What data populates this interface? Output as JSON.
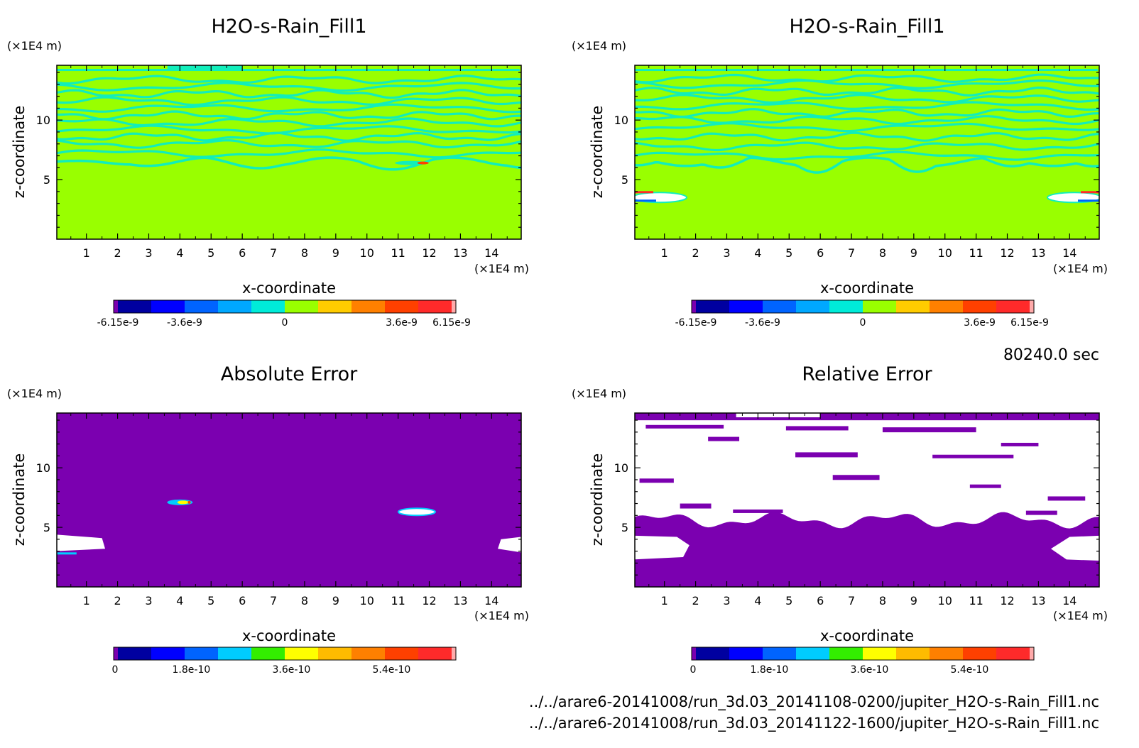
{
  "figure": {
    "time_label": "80240.0 sec",
    "files": [
      "../../arare6-20141008/run_3d.03_20141108-0200/jupiter_H2O-s-Rain_Fill1.nc",
      "../../arare6-20141008/run_3d.03_20141122-1600/jupiter_H2O-s-Rain_Fill1.nc"
    ],
    "colors": {
      "field_bg": "#99ff00",
      "field_contour": "#11eebb",
      "error_bg": "#7b00b0",
      "relative_high": "#ffffff"
    }
  },
  "chart_data": [
    {
      "type": "heatmap",
      "title": "H2O-s-Rain_Fill1",
      "xlabel": "x-coordinate",
      "ylabel": "z-coordinate",
      "x_unit": "(×1E4 m)",
      "y_unit": "(×1E4 m)",
      "xlim": [
        0.05,
        14.95
      ],
      "ylim": [
        0,
        14.6
      ],
      "xticks": [
        1,
        2,
        3,
        4,
        5,
        6,
        7,
        8,
        9,
        10,
        11,
        12,
        13,
        14
      ],
      "yticks": [
        5,
        10
      ],
      "colorbar": {
        "colors": [
          "#7b00b0",
          "#0000a0",
          "#0000ff",
          "#0064ff",
          "#00a8ff",
          "#00ecd8",
          "#99ff00",
          "#ffcc00",
          "#ff8000",
          "#ff4000",
          "#ff2a2a",
          "#ffaaaa"
        ],
        "tick_labels": [
          "-6.15e-9",
          "-3.6e-9",
          "0",
          "3.6e-9",
          "6.15e-9"
        ]
      },
      "features": {
        "contour_bands_z": [
          7.2,
          8.0,
          8.6,
          9.2,
          9.8,
          10.4,
          11.0,
          11.6,
          12.2,
          12.8,
          13.4
        ],
        "boundary_z": 6.5
      }
    },
    {
      "type": "heatmap",
      "title": "H2O-s-Rain_Fill1",
      "xlabel": "x-coordinate",
      "ylabel": "z-coordinate",
      "x_unit": "(×1E4 m)",
      "y_unit": "(×1E4 m)",
      "xlim": [
        0.05,
        14.95
      ],
      "ylim": [
        0,
        14.6
      ],
      "xticks": [
        1,
        2,
        3,
        4,
        5,
        6,
        7,
        8,
        9,
        10,
        11,
        12,
        13,
        14
      ],
      "yticks": [
        5,
        10
      ],
      "colorbar": {
        "colors": [
          "#7b00b0",
          "#0000a0",
          "#0000ff",
          "#0064ff",
          "#00a8ff",
          "#00ecd8",
          "#99ff00",
          "#ffcc00",
          "#ff8000",
          "#ff4000",
          "#ff2a2a",
          "#ffaaaa"
        ],
        "tick_labels": [
          "-6.15e-9",
          "-3.6e-9",
          "0",
          "3.6e-9",
          "6.15e-9"
        ]
      },
      "features": {
        "contour_bands_z": [
          7.0,
          7.8,
          8.6,
          9.4,
          10.0,
          10.6,
          11.2,
          11.8,
          12.4,
          13.0,
          13.5
        ],
        "boundary_z": 6.5
      }
    },
    {
      "type": "heatmap",
      "title": "Absolute Error",
      "xlabel": "x-coordinate",
      "ylabel": "z-coordinate",
      "x_unit": "(×1E4 m)",
      "y_unit": "(×1E4 m)",
      "xlim": [
        0.05,
        14.95
      ],
      "ylim": [
        0,
        14.6
      ],
      "xticks": [
        1,
        2,
        3,
        4,
        5,
        6,
        7,
        8,
        9,
        10,
        11,
        12,
        13,
        14
      ],
      "yticks": [
        5,
        10
      ],
      "colorbar": {
        "colors": [
          "#7b00b0",
          "#0000a0",
          "#0000ff",
          "#0064ff",
          "#00ccff",
          "#33ee00",
          "#ffff00",
          "#ffbb00",
          "#ff8000",
          "#ff4000",
          "#ff2a2a",
          "#ffaaaa"
        ],
        "tick_labels": [
          "0",
          "1.8e-10",
          "3.6e-10",
          "5.4e-10"
        ]
      }
    },
    {
      "type": "heatmap",
      "title": "Relative Error",
      "xlabel": "x-coordinate",
      "ylabel": "z-coordinate",
      "x_unit": "(×1E4 m)",
      "y_unit": "(×1E4 m)",
      "xlim": [
        0.05,
        14.95
      ],
      "ylim": [
        0,
        14.6
      ],
      "xticks": [
        1,
        2,
        3,
        4,
        5,
        6,
        7,
        8,
        9,
        10,
        11,
        12,
        13,
        14
      ],
      "yticks": [
        5,
        10
      ],
      "colorbar": {
        "colors": [
          "#7b00b0",
          "#0000a0",
          "#0000ff",
          "#0064ff",
          "#00ccff",
          "#33ee00",
          "#ffff00",
          "#ffbb00",
          "#ff8000",
          "#ff4000",
          "#ff2a2a",
          "#ffaaaa"
        ],
        "tick_labels": [
          "0",
          "1.8e-10",
          "3.6e-10",
          "5.4e-10"
        ]
      }
    }
  ]
}
